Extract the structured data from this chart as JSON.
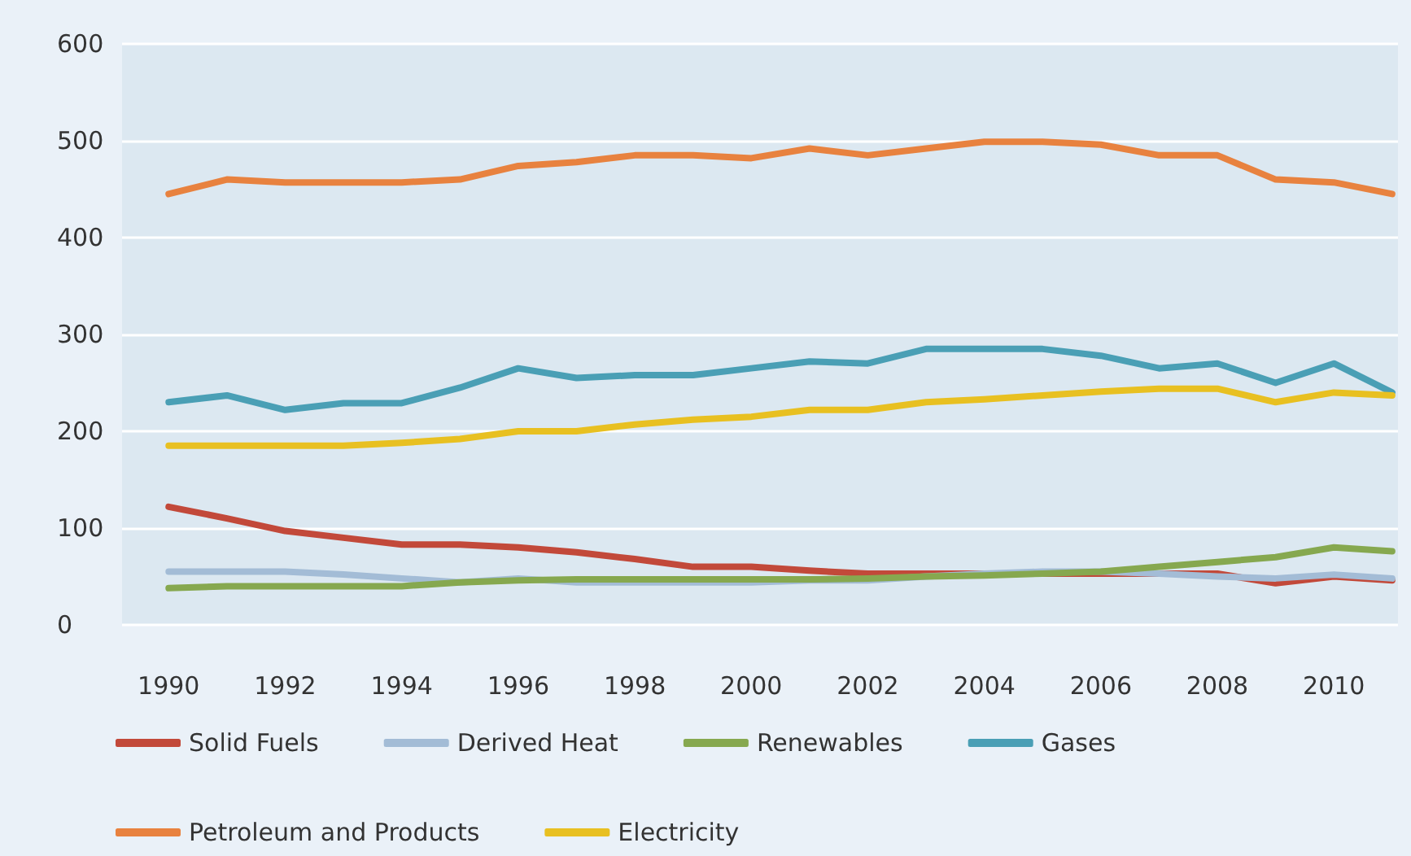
{
  "chart_data": {
    "type": "line",
    "x": [
      1990,
      1991,
      1992,
      1993,
      1994,
      1995,
      1996,
      1997,
      1998,
      1999,
      2000,
      2001,
      2002,
      2003,
      2004,
      2005,
      2006,
      2007,
      2008,
      2009,
      2010,
      2011
    ],
    "series": [
      {
        "name": "Solid Fuels",
        "color": "#c2493a",
        "values": [
          122,
          110,
          97,
          90,
          83,
          83,
          80,
          75,
          68,
          60,
          60,
          56,
          53,
          53,
          53,
          53,
          53,
          53,
          53,
          43,
          50,
          46
        ]
      },
      {
        "name": "Derived Heat",
        "color": "#a3bcd6",
        "values": [
          55,
          55,
          55,
          52,
          48,
          44,
          48,
          44,
          44,
          44,
          44,
          46,
          46,
          50,
          53,
          55,
          55,
          53,
          50,
          48,
          52,
          48
        ]
      },
      {
        "name": "Renewables",
        "color": "#86a84f",
        "values": [
          38,
          40,
          40,
          40,
          40,
          44,
          46,
          47,
          47,
          47,
          47,
          47,
          48,
          50,
          51,
          53,
          55,
          60,
          65,
          70,
          80,
          76
        ]
      },
      {
        "name": "Gases",
        "color": "#4a9fb5",
        "values": [
          230,
          237,
          222,
          229,
          229,
          245,
          265,
          255,
          258,
          258,
          265,
          272,
          270,
          285,
          285,
          285,
          278,
          265,
          270,
          250,
          270,
          240
        ]
      },
      {
        "name": "Petroleum and Products",
        "color": "#e8823f",
        "values": [
          445,
          460,
          457,
          457,
          457,
          460,
          474,
          478,
          485,
          485,
          482,
          492,
          485,
          492,
          499,
          499,
          496,
          485,
          485,
          460,
          457,
          445
        ]
      },
      {
        "name": "Electricity",
        "color": "#e8c021",
        "values": [
          185,
          185,
          185,
          185,
          188,
          192,
          200,
          200,
          207,
          212,
          215,
          222,
          222,
          230,
          233,
          237,
          241,
          244,
          244,
          230,
          240,
          237
        ]
      }
    ],
    "xlim": [
      1989.2,
      2011.1
    ],
    "xticks": [
      1990,
      1992,
      1994,
      1996,
      1998,
      2000,
      2002,
      2004,
      2006,
      2008,
      2010
    ],
    "ylim": [
      0,
      600
    ],
    "yticks": [
      0,
      100,
      200,
      300,
      400,
      500,
      600
    ],
    "grid": "y",
    "legend": "bottom",
    "marker": "none",
    "line_style": "solid"
  }
}
